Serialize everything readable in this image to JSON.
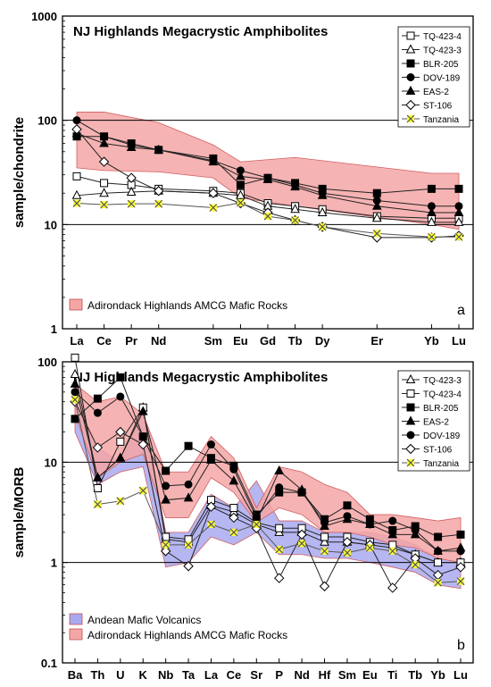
{
  "chart_data": [
    {
      "type": "line",
      "panel_label": "a",
      "title": "NJ Highlands Megacrystic Amphibolites",
      "ylabel": "sample/chondrite",
      "xlabel": "",
      "y_scale": "log",
      "ylim": [
        1,
        1000
      ],
      "y_ticks": [
        "1",
        "10",
        "100",
        "1000"
      ],
      "categories": [
        "La",
        "Ce",
        "Pr",
        "Nd",
        "Sm",
        "Eu",
        "Gd",
        "Tb",
        "Dy",
        "Er",
        "Yb",
        "Lu"
      ],
      "category_positions": [
        0,
        1,
        2,
        3,
        5,
        6,
        7,
        8,
        9,
        11,
        13,
        14
      ],
      "grid_lines": [
        10,
        100
      ],
      "legend_position": "top-right",
      "fields": [
        {
          "name": "Adirondack Highlands AMCG Mafic Rocks",
          "color": "#f4a6a6",
          "x": [
            0,
            1,
            3,
            5,
            6,
            8,
            13,
            14
          ],
          "upper": [
            120,
            120,
            95,
            58,
            40,
            44,
            31,
            31
          ],
          "lower": [
            35,
            33,
            32,
            28,
            18,
            15,
            10,
            9
          ]
        }
      ],
      "series": [
        {
          "name": "TQ-423-4",
          "marker": "square-open",
          "x": [
            0,
            1,
            2,
            3,
            5,
            6,
            7,
            8,
            9,
            11,
            13,
            14
          ],
          "values": [
            29,
            25,
            24,
            22,
            21,
            20,
            16,
            15,
            14,
            12,
            11.5,
            11.5
          ]
        },
        {
          "name": "TQ-423-3",
          "marker": "triangle-open",
          "x": [
            0,
            1,
            2,
            3,
            5,
            6,
            7,
            8,
            9,
            11,
            13,
            14
          ],
          "values": [
            19,
            20,
            20.5,
            21,
            20,
            19,
            15,
            14,
            13,
            11.5,
            10.5,
            10.5
          ]
        },
        {
          "name": "BLR-205",
          "marker": "square-filled",
          "x": [
            0,
            1,
            2,
            3,
            5,
            6,
            7,
            8,
            9,
            11,
            13,
            14
          ],
          "values": [
            70,
            70,
            60,
            52,
            43,
            24,
            28,
            25,
            22,
            20,
            22,
            22
          ]
        },
        {
          "name": "DOV-189",
          "marker": "circle-filled",
          "x": [
            0,
            1,
            2,
            3,
            5,
            6,
            7,
            8,
            9,
            11,
            13,
            14
          ],
          "values": [
            100,
            70,
            58,
            52,
            41,
            33,
            28,
            24,
            20,
            17,
            15,
            15
          ]
        },
        {
          "name": "EAS-2",
          "marker": "triangle-filled",
          "x": [
            0,
            1,
            2,
            3,
            5,
            6,
            7,
            8,
            9,
            11,
            13,
            14
          ],
          "values": [
            75,
            60,
            55,
            52,
            40,
            29,
            27,
            23,
            19,
            15,
            13,
            13
          ]
        },
        {
          "name": "ST-106",
          "marker": "diamond-open",
          "x": [
            0,
            1,
            2,
            3,
            5,
            6,
            7,
            8,
            9,
            11,
            13,
            14
          ],
          "values": [
            82,
            40,
            28,
            21,
            20,
            16,
            13,
            11,
            9.5,
            7.5,
            7.5,
            7.8
          ]
        },
        {
          "name": "Tanzania",
          "marker": "star-yellow",
          "x": [
            0,
            1,
            2,
            3,
            5,
            6,
            7,
            8,
            9,
            11,
            13,
            14
          ],
          "values": [
            16,
            15.5,
            15.8,
            15.8,
            14.5,
            16.2,
            12,
            11,
            9.5,
            8.2,
            7.6,
            7.6
          ]
        }
      ]
    },
    {
      "type": "line",
      "panel_label": "b",
      "title": "NJ Highlands Megacrystic Amphibolites",
      "ylabel": "sample/MORB",
      "xlabel": "",
      "y_scale": "log",
      "ylim": [
        0.1,
        100
      ],
      "y_ticks": [
        "0.1",
        "1",
        "10",
        "100"
      ],
      "categories": [
        "Ba",
        "Th",
        "U",
        "K",
        "Nb",
        "Ta",
        "La",
        "Ce",
        "Sr",
        "P",
        "Nd",
        "Hf",
        "Sm",
        "Eu",
        "Ti",
        "Tb",
        "Yb",
        "Lu"
      ],
      "category_positions": [
        0,
        1,
        2,
        3,
        4,
        5,
        6,
        7,
        8,
        9,
        10,
        11,
        12,
        13,
        14,
        15,
        16,
        17
      ],
      "grid_lines": [
        1,
        10,
        100
      ],
      "legend_position": "top-right",
      "fields": [
        {
          "name": "Andean Mafic Volcanics",
          "color": "#a9a9f0",
          "x": [
            0,
            1,
            2,
            3,
            4,
            5,
            6,
            7,
            8,
            9,
            10,
            11,
            12,
            13,
            14,
            15,
            16,
            17
          ],
          "upper": [
            45,
            14,
            10,
            30,
            2.0,
            2.0,
            4.8,
            3.5,
            6.5,
            2.6,
            2.6,
            2.0,
            2.0,
            2.0,
            1.8,
            1.5,
            1.1,
            1.0
          ],
          "lower": [
            20,
            6,
            8,
            9,
            0.9,
            1.0,
            1.8,
            1.5,
            2.0,
            1.2,
            1.2,
            1.1,
            1.1,
            1.0,
            0.9,
            0.8,
            0.6,
            0.55
          ]
        },
        {
          "name": "Adirondack Highlands AMCG Mafic Rocks",
          "color": "#f4a6a6",
          "x": [
            0,
            1,
            2,
            3,
            4,
            5,
            6,
            7,
            8,
            9,
            10,
            11,
            12,
            13,
            14,
            15,
            16,
            17
          ],
          "upper": [
            60,
            40,
            45,
            30,
            8,
            8,
            18,
            11,
            3.5,
            9,
            8,
            6,
            5,
            3,
            3,
            2.8,
            2.6,
            2.8
          ],
          "lower": [
            30,
            7,
            10,
            12,
            2.8,
            2.8,
            7,
            5,
            2.5,
            3.5,
            3,
            2,
            2,
            1.8,
            1.5,
            1.4,
            1.1,
            1.0
          ]
        }
      ],
      "series": [
        {
          "name": "TQ-423-3",
          "marker": "triangle-open",
          "x": [
            0,
            1,
            2,
            3,
            4,
            5,
            6,
            7,
            8,
            9,
            10,
            11,
            12,
            13,
            14,
            15,
            16,
            17
          ],
          "values": [
            75,
            7,
            11,
            35,
            1.7,
            1.6,
            3.7,
            3.2,
            2.4,
            2.0,
            2.0,
            1.6,
            1.6,
            1.5,
            1.4,
            1.2,
            1.0,
            1.0
          ]
        },
        {
          "name": "TQ-423-4",
          "marker": "square-open",
          "x": [
            0,
            1,
            2,
            3,
            4,
            5,
            6,
            7,
            8,
            9,
            10,
            11,
            12,
            13,
            14,
            15,
            16,
            17
          ],
          "values": [
            110,
            5.5,
            16,
            35,
            1.8,
            1.7,
            4.2,
            3.5,
            2.5,
            2.2,
            2.2,
            1.8,
            1.8,
            1.6,
            1.5,
            1.2,
            1.0,
            1.0
          ]
        },
        {
          "name": "BLR-205",
          "marker": "square-filled",
          "x": [
            0,
            1,
            2,
            3,
            4,
            5,
            6,
            7,
            8,
            9,
            10,
            11,
            12,
            13,
            14,
            15,
            16,
            17
          ],
          "values": [
            27,
            43,
            70,
            18,
            8.2,
            14.5,
            11,
            9.2,
            3.0,
            5.0,
            5.0,
            2.7,
            3.7,
            2.7,
            2.1,
            2.3,
            1.8,
            1.9
          ]
        },
        {
          "name": "EAS-2",
          "marker": "triangle-filled",
          "x": [
            0,
            1,
            2,
            3,
            4,
            5,
            6,
            7,
            8,
            9,
            10,
            11,
            12,
            13,
            14,
            15,
            16,
            17
          ],
          "values": [
            60,
            7,
            11,
            32,
            4.2,
            4.4,
            10.5,
            6.5,
            2.6,
            8.2,
            5.3,
            2.3,
            2.7,
            2.4,
            1.9,
            1.9,
            1.3,
            1.4
          ]
        },
        {
          "name": "DOV-189",
          "marker": "circle-filled",
          "x": [
            0,
            1,
            2,
            3,
            4,
            5,
            6,
            7,
            8,
            9,
            10,
            11,
            12,
            13,
            14,
            15,
            16,
            17
          ],
          "values": [
            50,
            31,
            45,
            18,
            5.8,
            6.0,
            15,
            8.5,
            2.8,
            5.6,
            5.0,
            2.5,
            2.9,
            2.4,
            2.6,
            2.1,
            1.3,
            1.3
          ]
        },
        {
          "name": "ST-106",
          "marker": "diamond-open",
          "x": [
            0,
            1,
            2,
            3,
            4,
            5,
            6,
            7,
            8,
            9,
            10,
            11,
            12,
            13,
            14,
            15,
            16,
            17
          ],
          "values": [
            40,
            14,
            20,
            15,
            1.3,
            0.92,
            3.6,
            2.8,
            2.2,
            0.7,
            1.9,
            0.58,
            1.6,
            1.5,
            0.56,
            1.1,
            0.75,
            0.9
          ]
        },
        {
          "name": "Tanzania",
          "marker": "star-yellow",
          "x": [
            0,
            1,
            2,
            3,
            4,
            5,
            6,
            7,
            8,
            9,
            10,
            11,
            12,
            13,
            14,
            15,
            16,
            17
          ],
          "values": [
            42,
            3.8,
            4.1,
            5.2,
            1.5,
            1.5,
            2.4,
            2.0,
            2.4,
            1.35,
            1.55,
            1.3,
            1.25,
            1.4,
            1.3,
            0.95,
            0.63,
            0.65
          ]
        }
      ]
    }
  ]
}
